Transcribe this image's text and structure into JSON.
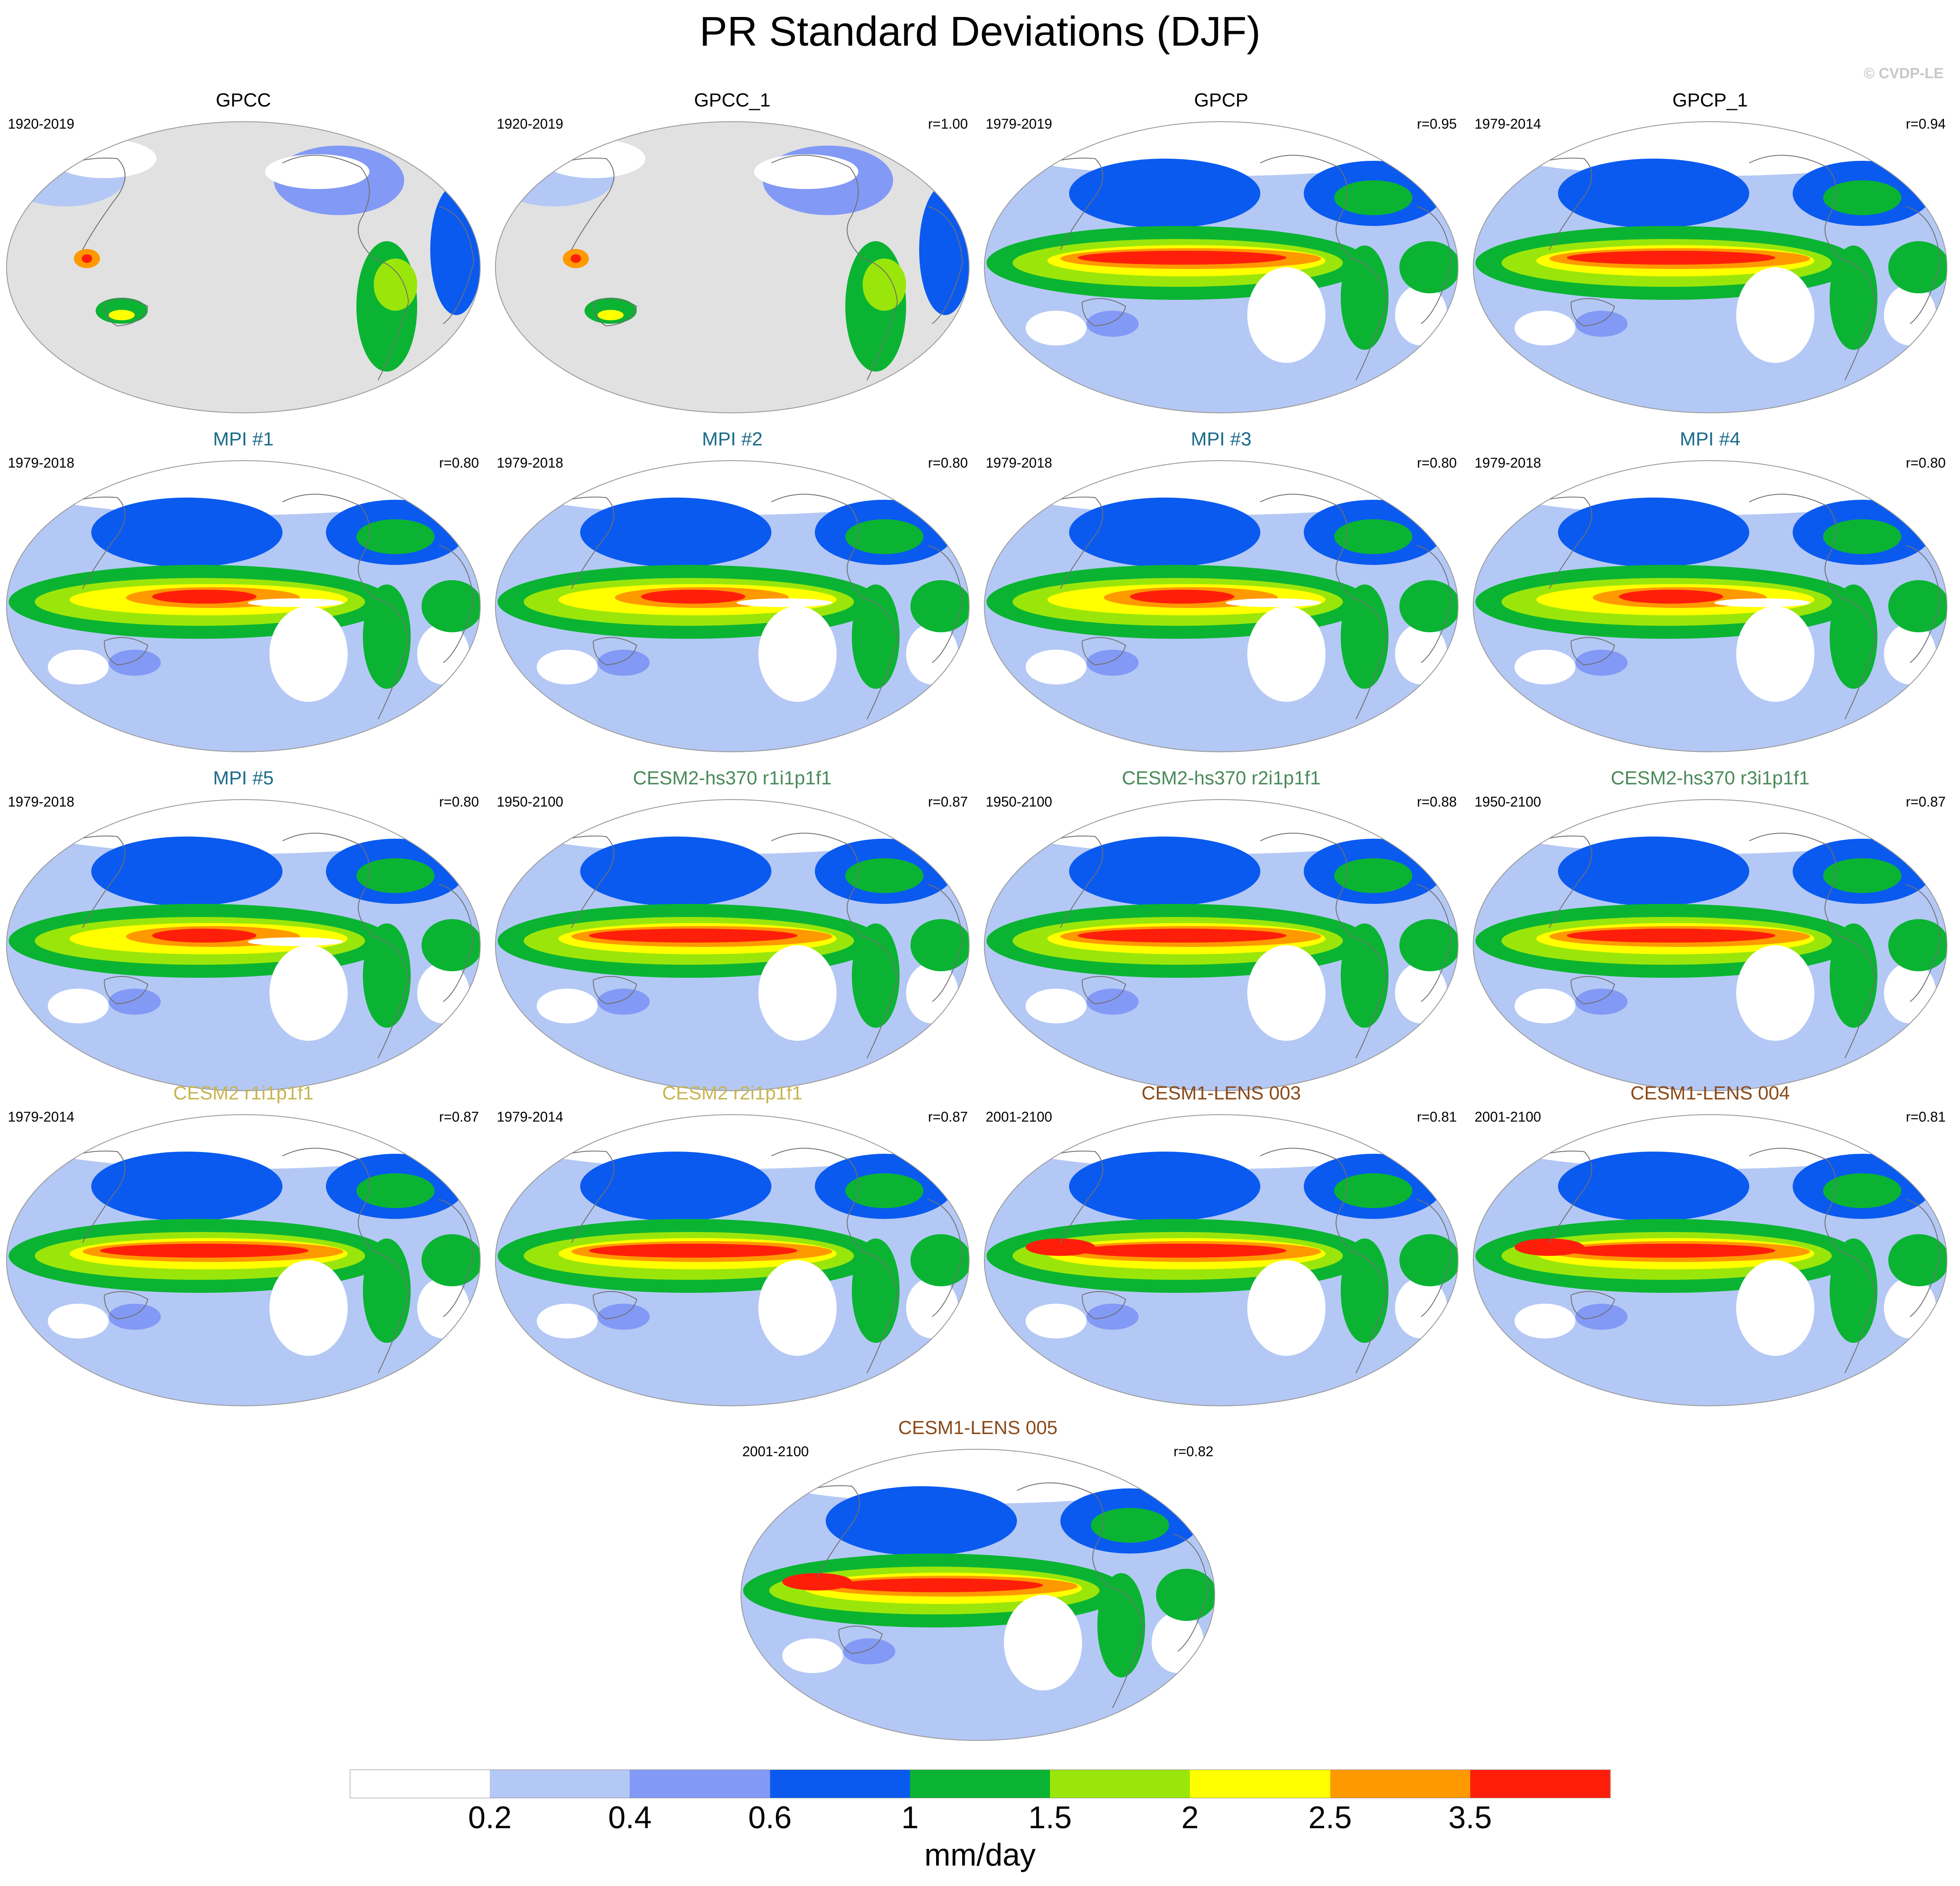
{
  "figure": {
    "title": "PR Standard Deviations (DJF)",
    "copyright": "© CVDP-LE"
  },
  "panels": [
    {
      "title": "GPCC",
      "title_color": "#000000",
      "period": "1920-2019",
      "r": "",
      "style": "land"
    },
    {
      "title": "GPCC_1",
      "title_color": "#000000",
      "period": "1920-2019",
      "r": "r=1.00",
      "style": "land"
    },
    {
      "title": "GPCP",
      "title_color": "#000000",
      "period": "1979-2019",
      "r": "r=0.95",
      "style": "obs"
    },
    {
      "title": "GPCP_1",
      "title_color": "#000000",
      "period": "1979-2014",
      "r": "r=0.94",
      "style": "obs"
    },
    {
      "title": "MPI #1",
      "title_color": "#1a6a8a",
      "period": "1979-2018",
      "r": "r=0.80",
      "style": "mpi"
    },
    {
      "title": "MPI #2",
      "title_color": "#1a6a8a",
      "period": "1979-2018",
      "r": "r=0.80",
      "style": "mpi"
    },
    {
      "title": "MPI #3",
      "title_color": "#1a6a8a",
      "period": "1979-2018",
      "r": "r=0.80",
      "style": "mpi"
    },
    {
      "title": "MPI #4",
      "title_color": "#1a6a8a",
      "period": "1979-2018",
      "r": "r=0.80",
      "style": "mpi"
    },
    {
      "title": "MPI #5",
      "title_color": "#1a6a8a",
      "period": "1979-2018",
      "r": "r=0.80",
      "style": "mpi"
    },
    {
      "title": "CESM2-hs370 r1i1p1f1",
      "title_color": "#4a8a5a",
      "period": "1950-2100",
      "r": "r=0.87",
      "style": "cesm"
    },
    {
      "title": "CESM2-hs370 r2i1p1f1",
      "title_color": "#4a8a5a",
      "period": "1950-2100",
      "r": "r=0.88",
      "style": "cesm"
    },
    {
      "title": "CESM2-hs370 r3i1p1f1",
      "title_color": "#4a8a5a",
      "period": "1950-2100",
      "r": "r=0.87",
      "style": "cesm"
    },
    {
      "title": "CESM2 r1i1p1f1",
      "title_color": "#c8b450",
      "period": "1979-2014",
      "r": "r=0.87",
      "style": "cesm"
    },
    {
      "title": "CESM2 r2i1p1f1",
      "title_color": "#c8b450",
      "period": "1979-2014",
      "r": "r=0.87",
      "style": "cesm"
    },
    {
      "title": "CESM1-LENS 003",
      "title_color": "#8a4a1a",
      "period": "2001-2100",
      "r": "r=0.81",
      "style": "lens"
    },
    {
      "title": "CESM1-LENS 004",
      "title_color": "#8a4a1a",
      "period": "2001-2100",
      "r": "r=0.81",
      "style": "lens"
    },
    {
      "title": "CESM1-LENS 005",
      "title_color": "#8a4a1a",
      "period": "2001-2100",
      "r": "r=0.82",
      "style": "lens"
    }
  ],
  "legend": {
    "colors": [
      "#ffffff",
      "#b4c8f5",
      "#8299f5",
      "#0a5af0",
      "#0ab432",
      "#9be60a",
      "#ffff00",
      "#ff9900",
      "#ff1e0a"
    ],
    "labels": [
      "0.2",
      "0.4",
      "0.6",
      "1",
      "1.5",
      "2",
      "2.5",
      "3.5"
    ],
    "units": "mm/day"
  }
}
